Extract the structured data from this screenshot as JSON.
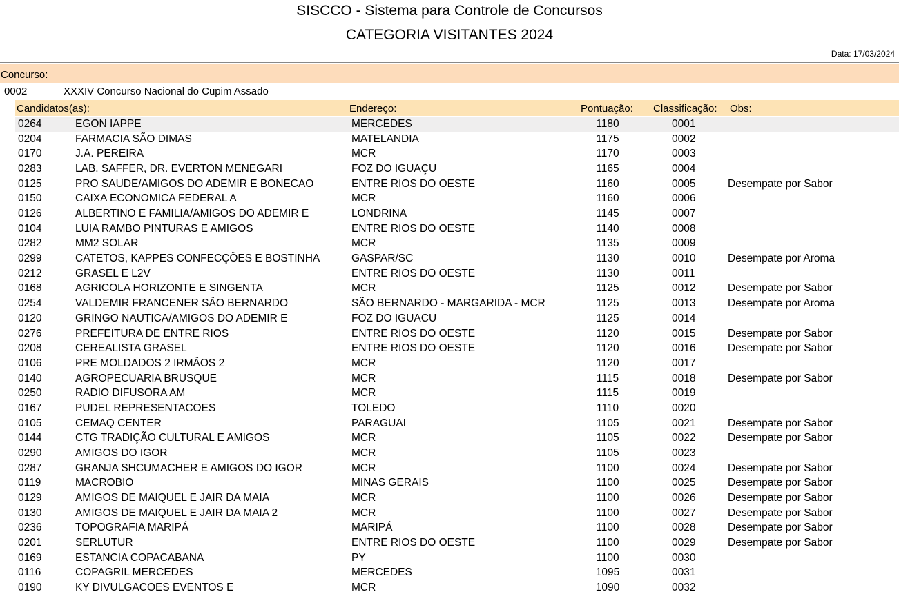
{
  "header": {
    "title": "SISCCO - Sistema para Controle de Concursos",
    "subtitle": "CATEGORIA VISITANTES 2024",
    "date": "Data: 17/03/2024"
  },
  "concurso": {
    "label": "Concurso:",
    "code": "0002",
    "name": "XXXIV Concurso Nacional do Cupim Assado"
  },
  "columns": {
    "candidates": "Candidatos(as):",
    "address": "Endereço:",
    "score": "Pontuação:",
    "classification": "Classificação:",
    "obs": "Obs:"
  },
  "rows": [
    {
      "code": "0264",
      "name": "EGON IAPPE",
      "address": "MERCEDES",
      "score": "1180",
      "class": "0001",
      "obs": ""
    },
    {
      "code": "0204",
      "name": "FARMACIA SÃO DIMAS",
      "address": "MATELANDIA",
      "score": "1175",
      "class": "0002",
      "obs": ""
    },
    {
      "code": "0170",
      "name": "J.A. PEREIRA",
      "address": "MCR",
      "score": "1170",
      "class": "0003",
      "obs": ""
    },
    {
      "code": "0283",
      "name": "LAB. SAFFER, DR. EVERTON MENEGARI",
      "address": "FOZ DO IGUAÇU",
      "score": "1165",
      "class": "0004",
      "obs": ""
    },
    {
      "code": "0125",
      "name": "PRO SAUDE/AMIGOS DO ADEMIR E BONECAO",
      "address": "ENTRE RIOS DO OESTE",
      "score": "1160",
      "class": "0005",
      "obs": "Desempate por Sabor"
    },
    {
      "code": "0150",
      "name": "CAIXA ECONOMICA FEDERAL A",
      "address": "MCR",
      "score": "1160",
      "class": "0006",
      "obs": ""
    },
    {
      "code": "0126",
      "name": "ALBERTINO E FAMILIA/AMIGOS DO ADEMIR E",
      "address": "LONDRINA",
      "score": "1145",
      "class": "0007",
      "obs": ""
    },
    {
      "code": "0104",
      "name": "LUIA RAMBO PINTURAS E AMIGOS",
      "address": "ENTRE RIOS DO OESTE",
      "score": "1140",
      "class": "0008",
      "obs": ""
    },
    {
      "code": "0282",
      "name": "MM2 SOLAR",
      "address": "MCR",
      "score": "1135",
      "class": "0009",
      "obs": ""
    },
    {
      "code": "0299",
      "name": "CATETOS, KAPPES CONFECÇÕES E BOSTINHA",
      "address": "GASPAR/SC",
      "score": "1130",
      "class": "0010",
      "obs": "Desempate por Aroma"
    },
    {
      "code": "0212",
      "name": "GRASEL E L2V",
      "address": "ENTRE RIOS DO OESTE",
      "score": "1130",
      "class": "0011",
      "obs": ""
    },
    {
      "code": "0168",
      "name": "AGRICOLA HORIZONTE E SINGENTA",
      "address": "MCR",
      "score": "1125",
      "class": "0012",
      "obs": "Desempate por Sabor"
    },
    {
      "code": "0254",
      "name": "VALDEMIR FRANCENER SÃO BERNARDO",
      "address": "SÃO BERNARDO - MARGARIDA - MCR",
      "score": "1125",
      "class": "0013",
      "obs": "Desempate por Aroma"
    },
    {
      "code": "0120",
      "name": "GRINGO NAUTICA/AMIGOS DO ADEMIR E",
      "address": "FOZ DO IGUACU",
      "score": "1125",
      "class": "0014",
      "obs": ""
    },
    {
      "code": "0276",
      "name": "PREFEITURA DE ENTRE RIOS",
      "address": "ENTRE RIOS DO OESTE",
      "score": "1120",
      "class": "0015",
      "obs": "Desempate por Sabor"
    },
    {
      "code": "0208",
      "name": "CEREALISTA GRASEL",
      "address": "ENTRE RIOS DO OESTE",
      "score": "1120",
      "class": "0016",
      "obs": "Desempate por Sabor"
    },
    {
      "code": "0106",
      "name": "PRE MOLDADOS 2 IRMÃOS 2",
      "address": "MCR",
      "score": "1120",
      "class": "0017",
      "obs": ""
    },
    {
      "code": "0140",
      "name": "AGROPECUARIA BRUSQUE",
      "address": "MCR",
      "score": "1115",
      "class": "0018",
      "obs": "Desempate por Sabor"
    },
    {
      "code": "0250",
      "name": "RADIO DIFUSORA AM",
      "address": "MCR",
      "score": "1115",
      "class": "0019",
      "obs": ""
    },
    {
      "code": "0167",
      "name": "PUDEL REPRESENTACOES",
      "address": "TOLEDO",
      "score": "1110",
      "class": "0020",
      "obs": ""
    },
    {
      "code": "0105",
      "name": "CEMAQ CENTER",
      "address": "PARAGUAI",
      "score": "1105",
      "class": "0021",
      "obs": "Desempate por Sabor"
    },
    {
      "code": "0144",
      "name": "CTG TRADIÇÃO CULTURAL E AMIGOS",
      "address": "MCR",
      "score": "1105",
      "class": "0022",
      "obs": "Desempate por Sabor"
    },
    {
      "code": "0290",
      "name": "AMIGOS DO IGOR",
      "address": "MCR",
      "score": "1105",
      "class": "0023",
      "obs": ""
    },
    {
      "code": "0287",
      "name": "GRANJA SHCUMACHER E AMIGOS DO IGOR",
      "address": "MCR",
      "score": "1100",
      "class": "0024",
      "obs": "Desempate por Sabor"
    },
    {
      "code": "0119",
      "name": "MACROBIO",
      "address": "MINAS GERAIS",
      "score": "1100",
      "class": "0025",
      "obs": "Desempate por Sabor"
    },
    {
      "code": "0129",
      "name": "AMIGOS DE MAIQUEL E JAIR DA MAIA",
      "address": "MCR",
      "score": "1100",
      "class": "0026",
      "obs": "Desempate por Sabor"
    },
    {
      "code": "0130",
      "name": "AMIGOS DE MAIQUEL E JAIR DA MAIA 2",
      "address": "MCR",
      "score": "1100",
      "class": "0027",
      "obs": "Desempate por Sabor"
    },
    {
      "code": "0236",
      "name": "TOPOGRAFIA MARIPÁ",
      "address": "MARIPÁ",
      "score": "1100",
      "class": "0028",
      "obs": "Desempate por Sabor"
    },
    {
      "code": "0201",
      "name": "SERLUTUR",
      "address": "ENTRE RIOS DO OESTE",
      "score": "1100",
      "class": "0029",
      "obs": "Desempate por Sabor"
    },
    {
      "code": "0169",
      "name": "ESTANCIA COPACABANA",
      "address": "PY",
      "score": "1100",
      "class": "0030",
      "obs": ""
    },
    {
      "code": "0116",
      "name": "COPAGRIL MERCEDES",
      "address": "MERCEDES",
      "score": "1095",
      "class": "0031",
      "obs": ""
    },
    {
      "code": "0190",
      "name": "KY DIVULGACOES EVENTOS E",
      "address": "MCR",
      "score": "1090",
      "class": "0032",
      "obs": ""
    }
  ]
}
